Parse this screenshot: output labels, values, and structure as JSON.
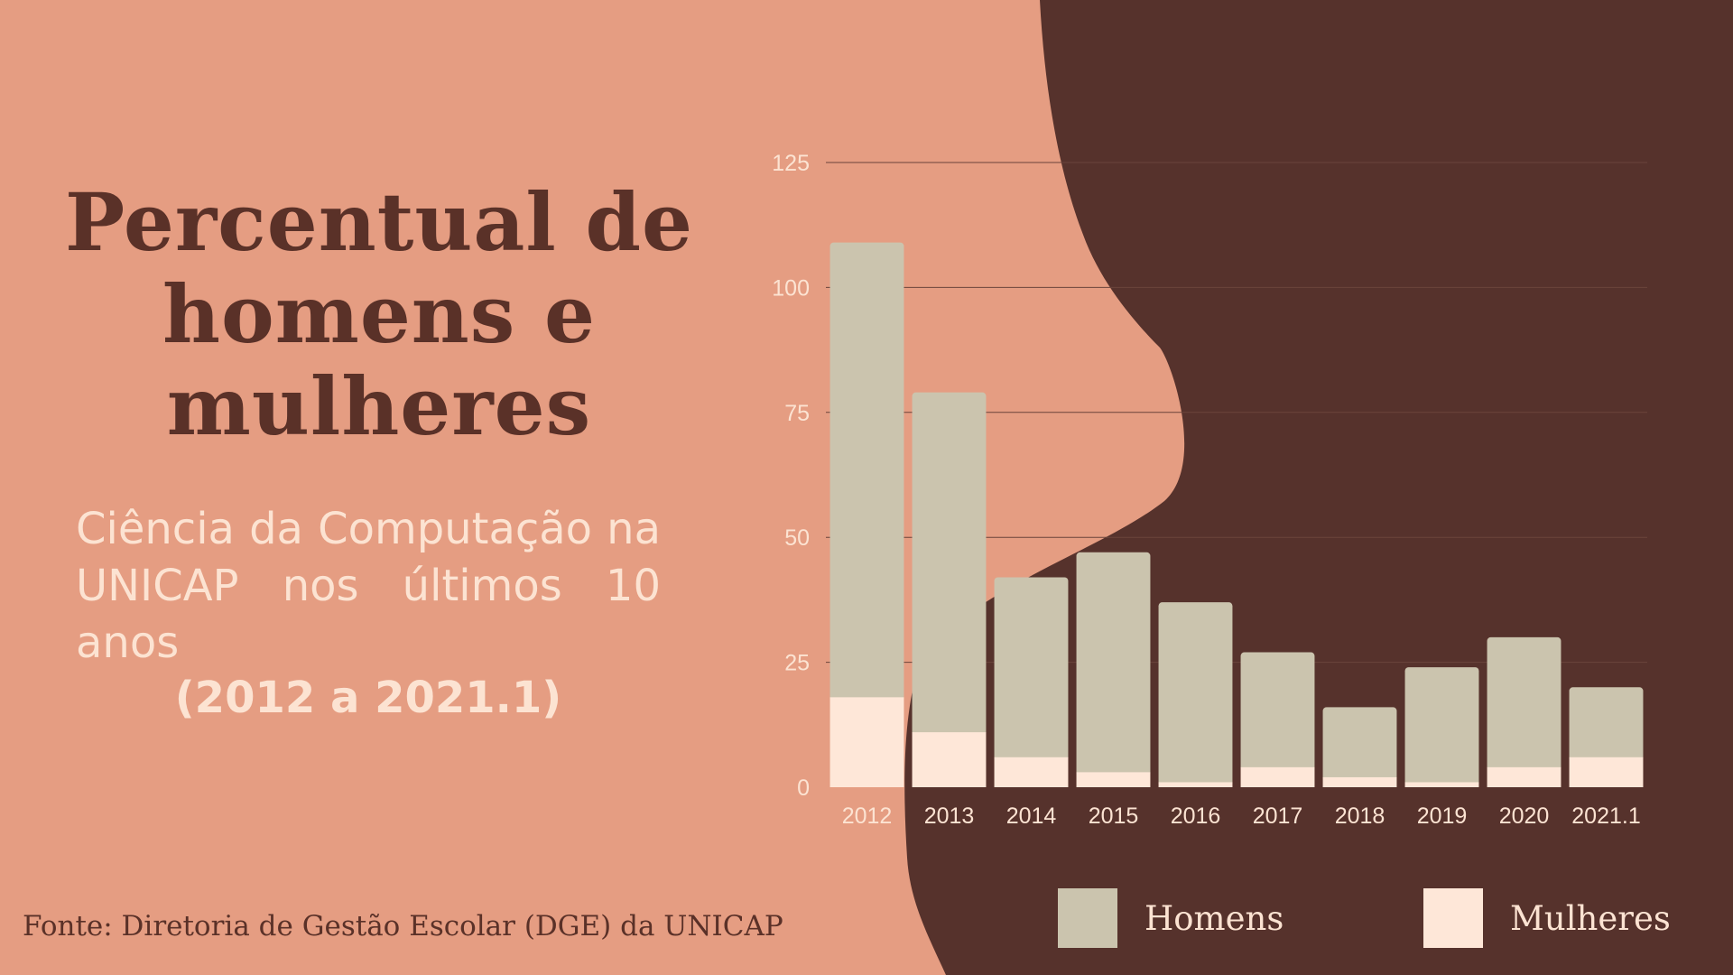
{
  "title_lines": [
    "Percentual de",
    "homens e",
    "mulheres"
  ],
  "subtitle": "Ciência da Computação na UNICAP nos últimos 10 anos",
  "years_range": "(2012 a 2021.1)",
  "source": "Fonte: Diretoria de Gestão Escolar (DGE) da UNICAP",
  "colors": {
    "background_light": "#E59D82",
    "background_dark": "#56322C",
    "homens": "#CBC4AE",
    "mulheres": "#FEE7D8",
    "title": "#5A3128",
    "text_light": "#FCE3D2"
  },
  "chart_data": {
    "type": "bar",
    "stacked": true,
    "categories": [
      "2012",
      "2013",
      "2014",
      "2015",
      "2016",
      "2017",
      "2018",
      "2019",
      "2020",
      "2021.1"
    ],
    "series": [
      {
        "name": "Mulheres",
        "values": [
          18,
          11,
          6,
          3,
          1,
          4,
          2,
          1,
          4,
          6
        ]
      },
      {
        "name": "Homens",
        "values": [
          91,
          68,
          36,
          44,
          36,
          23,
          14,
          23,
          26,
          14
        ]
      }
    ],
    "yticks": [
      0,
      25,
      50,
      75,
      100,
      125
    ],
    "ylim": [
      0,
      125
    ],
    "grid": true,
    "legend_position": "bottom"
  }
}
